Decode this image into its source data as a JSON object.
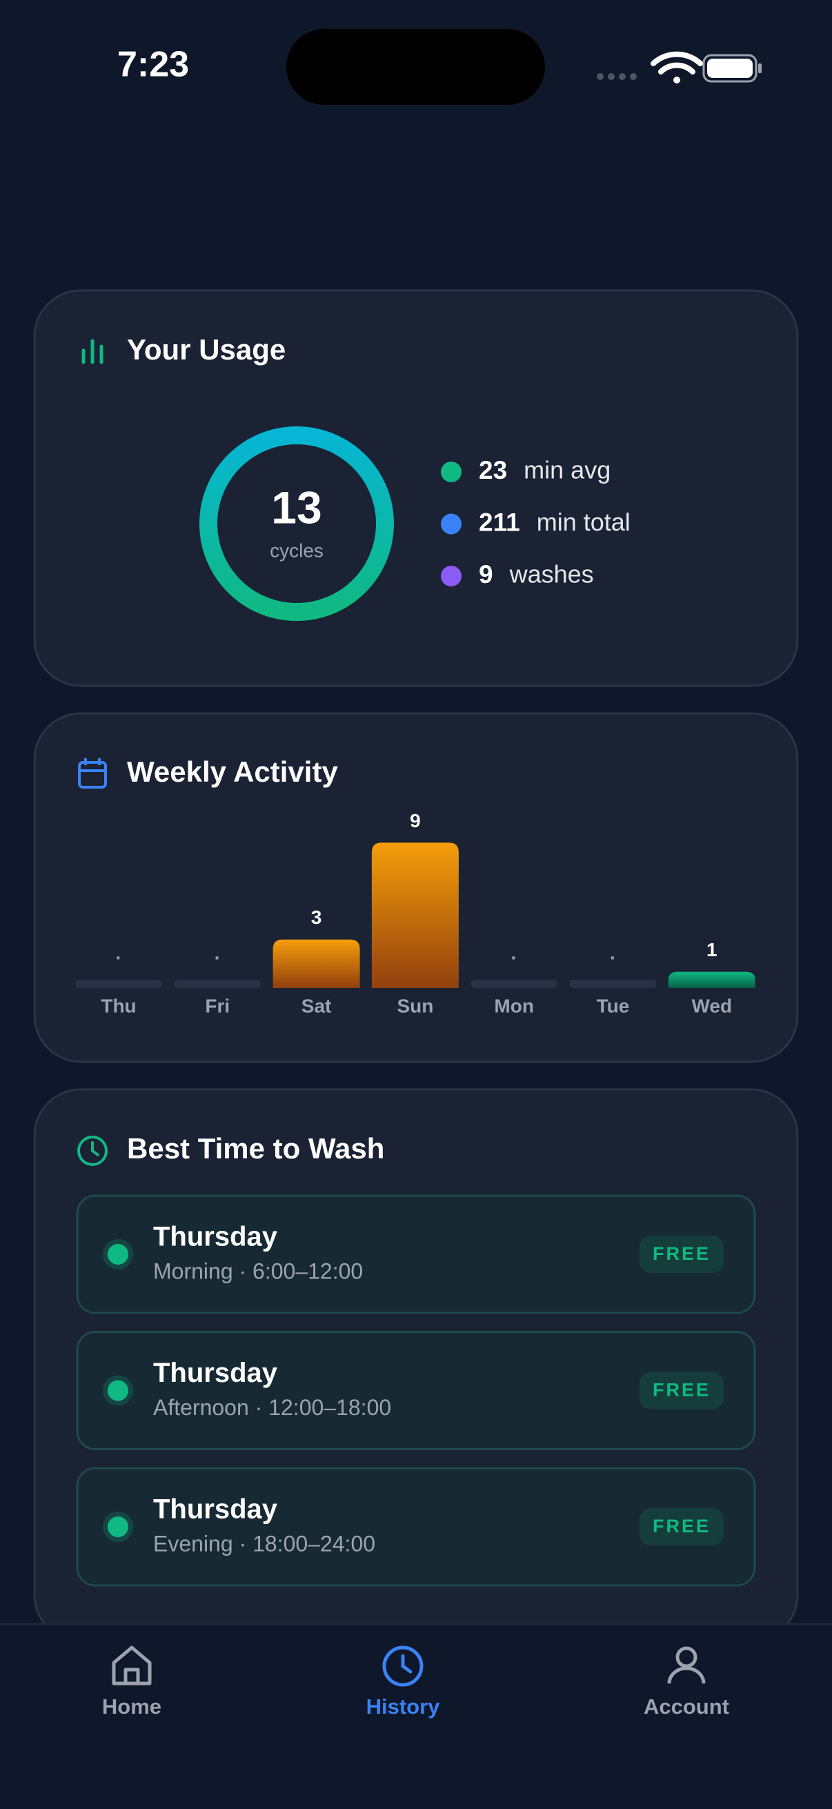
{
  "status_bar": {
    "time": "7:23"
  },
  "usage": {
    "title": "Your Usage",
    "cycles": 13,
    "cycles_label": "cycles",
    "stats": [
      {
        "value": 23,
        "label": "min avg",
        "color": "#10b981"
      },
      {
        "value": 211,
        "label": "min total",
        "color": "#3b82f6"
      },
      {
        "value": 9,
        "label": "washes",
        "color": "#8b5cf6"
      }
    ]
  },
  "weekly_activity": {
    "title": "Weekly Activity",
    "days": [
      "Thu",
      "Fri",
      "Sat",
      "Sun",
      "Mon",
      "Tue",
      "Wed"
    ],
    "values": [
      0,
      0,
      3,
      9,
      0,
      0,
      1
    ],
    "value_labels": [
      "·",
      "·",
      "3",
      "9",
      "·",
      "·",
      "1"
    ]
  },
  "best_time": {
    "title": "Best Time to Wash",
    "slots": [
      {
        "day": "Thursday",
        "period": "Morning · 6:00–12:00",
        "status": "FREE"
      },
      {
        "day": "Thursday",
        "period": "Afternoon · 12:00–18:00",
        "status": "FREE"
      },
      {
        "day": "Thursday",
        "period": "Evening · 18:00–24:00",
        "status": "FREE"
      }
    ]
  },
  "nav": {
    "items": [
      {
        "label": "Home"
      },
      {
        "label": "History"
      },
      {
        "label": "Account"
      }
    ]
  }
}
